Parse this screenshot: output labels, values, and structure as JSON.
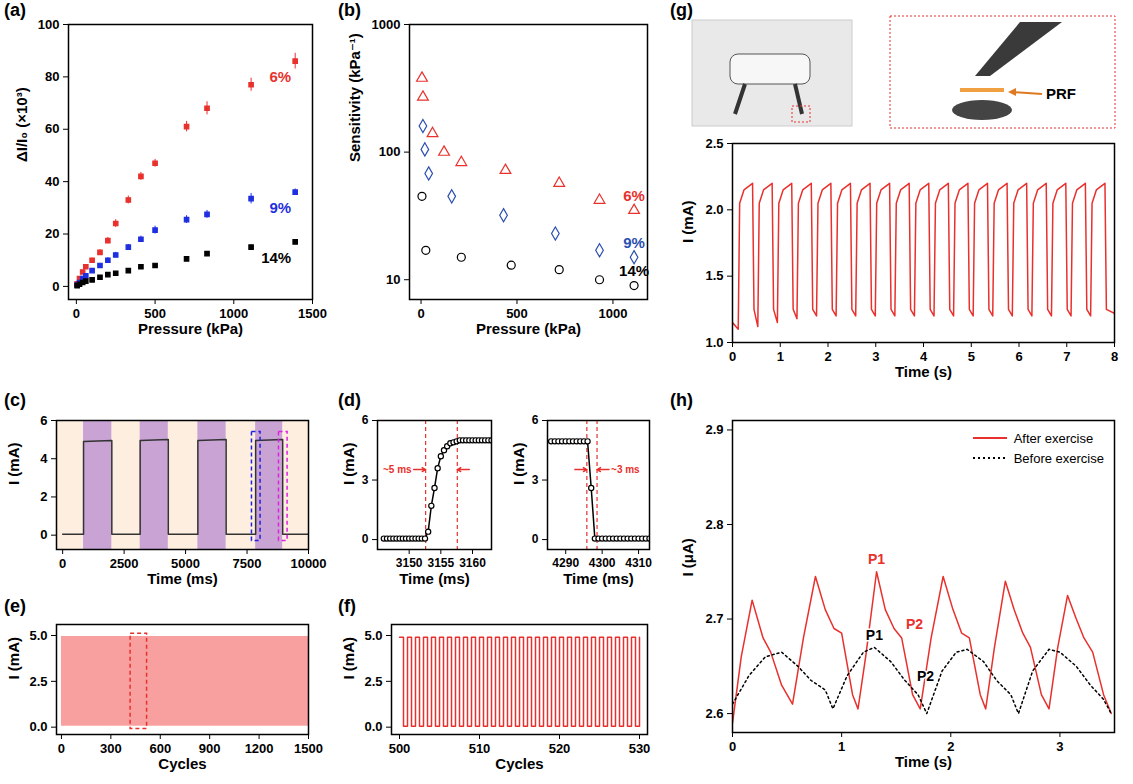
{
  "chart_data": [
    {
      "panel": "(a)",
      "type": "scatter",
      "x_label": "Pressure (kPa)",
      "y_label": "ΔI/I₀ (×10³)",
      "xlim": [
        -50,
        1500
      ],
      "xticks": [
        0,
        500,
        1000,
        1500
      ],
      "ylim": [
        -5,
        100
      ],
      "yticks": [
        0,
        20,
        40,
        60,
        80,
        100
      ],
      "series": [
        {
          "name": "6%",
          "color": "#e8312d",
          "marker": "square",
          "x": [
            5,
            20,
            40,
            60,
            100,
            150,
            200,
            250,
            330,
            410,
            500,
            700,
            830,
            1110,
            1390
          ],
          "values": [
            1,
            3,
            5.5,
            7.5,
            10,
            13,
            17.5,
            24,
            33,
            42,
            47,
            61,
            68,
            77,
            86
          ],
          "errors": [
            0.3,
            0.5,
            0.5,
            0.6,
            0.8,
            1,
            1.2,
            1.5,
            1.5,
            1.5,
            1.5,
            2,
            2.5,
            2.5,
            3
          ]
        },
        {
          "name": "9%",
          "color": "#1f2fe0",
          "marker": "square",
          "x": [
            5,
            20,
            40,
            60,
            100,
            150,
            200,
            250,
            330,
            410,
            500,
            700,
            830,
            1110,
            1390
          ],
          "values": [
            0.5,
            1.5,
            3,
            4,
            6,
            8,
            10,
            12,
            15,
            18,
            21.5,
            25.5,
            27.5,
            33.5,
            36
          ],
          "errors": [
            0.3,
            0.4,
            0.5,
            0.5,
            0.6,
            0.8,
            1,
            1,
            1,
            1.2,
            1.5,
            1.5,
            1.5,
            2,
            1.2
          ]
        },
        {
          "name": "14%",
          "color": "#000000",
          "marker": "square",
          "x": [
            5,
            20,
            40,
            60,
            100,
            150,
            200,
            250,
            330,
            410,
            500,
            700,
            830,
            1110,
            1390
          ],
          "values": [
            0.3,
            0.8,
            1.5,
            2,
            2.5,
            3.5,
            4.5,
            5,
            6,
            7.5,
            8,
            10.5,
            12.5,
            15,
            17
          ],
          "errors": [
            0.2,
            0.2,
            0.3,
            0.3,
            0.3,
            0.4,
            0.4,
            0.5,
            0.5,
            0.5,
            0.5,
            0.7,
            0.7,
            0.7,
            0.8
          ]
        }
      ]
    },
    {
      "panel": "(b)",
      "type": "scatter",
      "log": "y",
      "x_label": "Pressure (kPa)",
      "y_label": "Sensitivity (kPa⁻¹)",
      "xlim": [
        -60,
        1180
      ],
      "xticks": [
        0,
        500,
        1000
      ],
      "ylim": [
        7,
        1000
      ],
      "yticks": [
        10,
        100,
        1000
      ],
      "series": [
        {
          "name": "6%",
          "color": "#e8312d",
          "marker": "triangle-open",
          "x": [
            5,
            10,
            60,
            120,
            210,
            440,
            720,
            930,
            1110
          ],
          "values": [
            380,
            270,
            140,
            100,
            83,
            72,
            57,
            42,
            35
          ]
        },
        {
          "name": "9%",
          "color": "#2a4fb0",
          "marker": "diamond-open",
          "x": [
            10,
            20,
            40,
            160,
            430,
            700,
            930,
            1110
          ],
          "values": [
            160,
            105,
            68,
            45,
            32,
            23,
            17,
            15
          ]
        },
        {
          "name": "14%",
          "color": "#000000",
          "marker": "circle-open",
          "x": [
            5,
            25,
            210,
            470,
            720,
            930,
            1110
          ],
          "values": [
            45,
            17,
            15,
            13,
            12,
            10,
            9
          ]
        }
      ]
    },
    {
      "panel": "(c)",
      "type": "line",
      "x_label": "Time (ms)",
      "y_label": "I (mA)",
      "xlim": [
        -250,
        10000
      ],
      "xticks": [
        0,
        2500,
        5000,
        7500,
        10000
      ],
      "ylim": [
        -0.75,
        6
      ],
      "yticks": [
        0,
        2,
        4,
        6
      ],
      "color": "#333333",
      "x": [
        0,
        850,
        850,
        2000,
        2000,
        3153,
        3153,
        4297,
        4297,
        5500,
        5500,
        6650,
        6650,
        7850,
        7850,
        8950,
        8950,
        10000
      ],
      "values": [
        0.05,
        0.05,
        4.9,
        4.95,
        0.05,
        0.05,
        4.95,
        5.0,
        0.05,
        0.05,
        4.95,
        5.0,
        0.05,
        0.05,
        4.95,
        5.0,
        0.05,
        0.05
      ],
      "highlights": {
        "color": "#c9a3d4",
        "intervals": [
          [
            850,
            2000
          ],
          [
            3153,
            4297
          ],
          [
            5500,
            6650
          ],
          [
            7850,
            8950
          ]
        ]
      },
      "zoom_windows": [
        {
          "x": [
            7700,
            8050
          ],
          "y": [
            -0.3,
            5.4
          ],
          "color": "#2020e0"
        },
        {
          "x": [
            8800,
            9150
          ],
          "y": [
            -0.3,
            5.4
          ],
          "color": "#e020e0"
        }
      ]
    },
    {
      "panel": "(d)",
      "type": "line",
      "x_label": "Time (ms)",
      "y_label": "I (mA)",
      "xlim": [
        3145,
        3163
      ],
      "xticks": [
        3150,
        3155,
        3160
      ],
      "ylim": [
        -0.5,
        6
      ],
      "yticks": [
        0,
        3,
        6
      ],
      "color": "#000000",
      "marker": "circle-open",
      "x": [
        3146,
        3146.5,
        3147,
        3147.5,
        3148,
        3148.5,
        3149,
        3149.5,
        3150,
        3150.5,
        3151,
        3151.5,
        3152,
        3152.5,
        3153,
        3153.5,
        3154,
        3154.5,
        3155,
        3155.5,
        3156,
        3156.5,
        3157,
        3157.5,
        3158,
        3158.5,
        3159,
        3159.5,
        3160,
        3160.5,
        3161,
        3161.5,
        3162,
        3162.5,
        3163
      ],
      "values": [
        0.05,
        0.05,
        0.05,
        0.05,
        0.05,
        0.05,
        0.05,
        0.05,
        0.05,
        0.05,
        0.05,
        0.05,
        0.05,
        0.05,
        0.4,
        1.7,
        2.6,
        3.6,
        4.2,
        4.5,
        4.7,
        4.85,
        4.9,
        4.95,
        5.0,
        5.0,
        5.0,
        5.0,
        5.0,
        5.0,
        5.0,
        5.0,
        5.0,
        5.0,
        5.0
      ],
      "span": {
        "x": [
          3152.6,
          3157.6
        ],
        "label": "~5 ms",
        "color": "#e8312d"
      }
    },
    {
      "type": "line",
      "x_label": "Time (ms)",
      "y_label": "I (mA)",
      "xlim": [
        4285,
        4313
      ],
      "xticks": [
        4290,
        4300,
        4310
      ],
      "ylim": [
        -0.5,
        6
      ],
      "yticks": [
        0,
        3,
        6
      ],
      "color": "#000000",
      "marker": "circle-open",
      "x": [
        4286,
        4287,
        4288,
        4289,
        4290,
        4291,
        4292,
        4293,
        4294,
        4295,
        4296,
        4297,
        4298,
        4299,
        4300,
        4301,
        4302,
        4303,
        4304,
        4305,
        4306,
        4307,
        4308,
        4309,
        4310,
        4311,
        4312,
        4313
      ],
      "values": [
        4.95,
        4.95,
        4.95,
        4.95,
        4.95,
        4.95,
        4.95,
        4.95,
        4.95,
        4.95,
        4.95,
        2.6,
        0.05,
        0.05,
        0.05,
        0.05,
        0.05,
        0.05,
        0.05,
        0.05,
        0.05,
        0.05,
        0.05,
        0.05,
        0.05,
        0.05,
        0.05,
        0.05
      ],
      "span": {
        "x": [
          4295.8,
          4298.6
        ],
        "label": "~3 ms",
        "color": "#e8312d"
      }
    },
    {
      "panel": "(e)",
      "type": "area",
      "x_label": "Cycles",
      "y_label": "I (mA)",
      "xlim": [
        -30,
        1500
      ],
      "xticks": [
        0,
        300,
        600,
        900,
        1200,
        1500
      ],
      "ylim": [
        -0.4,
        5.6
      ],
      "yticks": [
        {
          "value": 0,
          "label": "0.0"
        },
        2.5,
        {
          "value": 5,
          "label": "5.0"
        }
      ],
      "color": "#f8a0a0",
      "x": [
        0,
        1500
      ],
      "upper": [
        4.95,
        4.95
      ],
      "lower": [
        0.05,
        0.05
      ],
      "zoom_windows": [
        {
          "x": [
            420,
            520
          ],
          "y": [
            -0.1,
            5.1
          ],
          "color": "#e8312d"
        }
      ]
    },
    {
      "panel": "(f)",
      "type": "line",
      "x_label": "Cycles",
      "y_label": "I (mA)",
      "xlim": [
        499,
        531
      ],
      "xticks": [
        500,
        510,
        520,
        530
      ],
      "ylim": [
        -0.4,
        5.6
      ],
      "yticks": [
        {
          "value": 0,
          "label": "0.0"
        },
        2.5,
        {
          "value": 5,
          "label": "5.0"
        }
      ],
      "color": "#e8312d",
      "line_style": "step",
      "x": [
        500,
        500.5,
        501,
        501.5,
        502,
        502.5,
        503,
        503.5,
        504,
        504.5,
        505,
        505.5,
        506,
        506.5,
        507,
        507.5,
        508,
        508.5,
        509,
        509.5,
        510,
        510.5,
        511,
        511.5,
        512,
        512.5,
        513,
        513.5,
        514,
        514.5,
        515,
        515.5,
        516,
        516.5,
        517,
        517.5,
        518,
        518.5,
        519,
        519.5,
        520,
        520.5,
        521,
        521.5,
        522,
        522.5,
        523,
        523.5,
        524,
        524.5,
        525,
        525.5,
        526,
        526.5,
        527,
        527.5,
        528,
        528.5,
        529,
        529.5,
        530
      ],
      "values": [
        4.9,
        0.05,
        4.9,
        0.05,
        4.9,
        0.05,
        4.9,
        0.05,
        4.9,
        0.05,
        4.9,
        0.05,
        4.9,
        0.05,
        4.9,
        0.05,
        4.9,
        0.05,
        4.9,
        0.05,
        4.9,
        0.05,
        4.9,
        0.05,
        4.9,
        0.05,
        4.9,
        0.05,
        4.9,
        0.05,
        4.9,
        0.05,
        4.9,
        0.05,
        4.9,
        0.05,
        4.9,
        0.05,
        4.9,
        0.05,
        4.9,
        0.05,
        4.9,
        0.05,
        4.9,
        0.05,
        4.9,
        0.05,
        4.9,
        0.05,
        4.9,
        0.05,
        4.9,
        0.05,
        4.9,
        0.05,
        4.9,
        0.05,
        4.9,
        0.05,
        4.9
      ]
    },
    {
      "panel": "(g)",
      "type": "line",
      "x_label": "Time (s)",
      "y_label": "I (mA)",
      "xlim": [
        0,
        8
      ],
      "xticks": [
        0,
        1,
        2,
        3,
        4,
        5,
        6,
        7,
        8
      ],
      "ylim": [
        1.0,
        2.5
      ],
      "yticks": [
        {
          "value": 1,
          "label": "1.0"
        },
        1.5,
        {
          "value": 2,
          "label": "2.0"
        },
        2.5
      ],
      "color": "#e8312d",
      "x": [
        0,
        0.12,
        0.15,
        0.24,
        0.42,
        0.45,
        0.53,
        0.56,
        0.65,
        0.83,
        0.86,
        0.94,
        0.97,
        1.06,
        1.24,
        1.27,
        1.35,
        1.38,
        1.47,
        1.65,
        1.68,
        1.76,
        1.79,
        1.88,
        2.06,
        2.09,
        2.17,
        2.2,
        2.29,
        2.47,
        2.5,
        2.58,
        2.61,
        2.7,
        2.88,
        2.91,
        2.99,
        3.02,
        3.11,
        3.29,
        3.32,
        3.4,
        3.43,
        3.52,
        3.7,
        3.73,
        3.81,
        3.84,
        3.93,
        4.11,
        4.14,
        4.22,
        4.25,
        4.34,
        4.52,
        4.55,
        4.63,
        4.66,
        4.75,
        4.93,
        4.96,
        5.04,
        5.07,
        5.16,
        5.34,
        5.37,
        5.45,
        5.48,
        5.57,
        5.75,
        5.78,
        5.86,
        5.89,
        5.98,
        6.16,
        6.19,
        6.27,
        6.3,
        6.39,
        6.57,
        6.6,
        6.68,
        6.71,
        6.8,
        6.98,
        7.01,
        7.09,
        7.12,
        7.21,
        7.39,
        7.42,
        7.5,
        7.53,
        7.62,
        7.8,
        7.83,
        8
      ],
      "values": [
        1.15,
        1.1,
        2.05,
        2.15,
        2.2,
        1.25,
        1.12,
        2.05,
        2.15,
        2.2,
        1.25,
        1.15,
        2.05,
        2.15,
        2.2,
        1.25,
        1.18,
        2.05,
        2.15,
        2.2,
        1.25,
        1.2,
        2.05,
        2.15,
        2.2,
        1.25,
        1.2,
        2.05,
        2.15,
        2.2,
        1.25,
        1.2,
        2.05,
        2.15,
        2.2,
        1.25,
        1.2,
        2.05,
        2.15,
        2.2,
        1.25,
        1.2,
        2.05,
        2.15,
        2.2,
        1.25,
        1.2,
        2.05,
        2.15,
        2.2,
        1.25,
        1.2,
        2.05,
        2.15,
        2.2,
        1.25,
        1.2,
        2.05,
        2.15,
        2.2,
        1.25,
        1.2,
        2.05,
        2.15,
        2.2,
        1.25,
        1.2,
        2.05,
        2.15,
        2.2,
        1.25,
        1.2,
        2.05,
        2.15,
        2.2,
        1.25,
        1.2,
        2.05,
        2.15,
        2.2,
        1.25,
        1.2,
        2.05,
        2.15,
        2.2,
        1.25,
        1.2,
        2.05,
        2.15,
        2.2,
        1.25,
        1.2,
        2.05,
        2.15,
        2.2,
        1.25,
        1.22
      ],
      "annotations": [
        {
          "text": "PRF"
        }
      ]
    },
    {
      "panel": "(h)",
      "type": "line",
      "x_label": "Time (s)",
      "y_label": "I (μA)",
      "xlim": [
        0,
        3.5
      ],
      "xticks": [
        0,
        1,
        2,
        3
      ],
      "ylim": [
        2.58,
        2.91
      ],
      "yticks": [
        2.6,
        2.7,
        2.8,
        2.9
      ],
      "legend": "top-right",
      "series": [
        {
          "name": "After exercise",
          "color": "#e8312d",
          "line_style": "solid",
          "x": [
            0,
            0.08,
            0.18,
            0.28,
            0.35,
            0.45,
            0.55,
            0.65,
            0.76,
            0.85,
            0.93,
            1.0,
            1.1,
            1.15,
            1.22,
            1.32,
            1.4,
            1.48,
            1.55,
            1.65,
            1.72,
            1.82,
            1.93,
            2.02,
            2.1,
            2.17,
            2.27,
            2.32,
            2.4,
            2.5,
            2.58,
            2.66,
            2.73,
            2.83,
            2.9,
            2.98,
            3.07,
            3.15,
            3.22,
            3.3,
            3.4,
            3.47
          ],
          "values": [
            2.59,
            2.66,
            2.72,
            2.68,
            2.665,
            2.63,
            2.61,
            2.68,
            2.745,
            2.71,
            2.69,
            2.685,
            2.62,
            2.605,
            2.66,
            2.75,
            2.71,
            2.69,
            2.68,
            2.62,
            2.605,
            2.68,
            2.745,
            2.71,
            2.685,
            2.68,
            2.62,
            2.605,
            2.67,
            2.74,
            2.71,
            2.685,
            2.67,
            2.62,
            2.605,
            2.67,
            2.725,
            2.7,
            2.68,
            2.665,
            2.62,
            2.6
          ],
          "annotations": [
            {
              "text": "P1",
              "x": 1.32,
              "y": 2.75
            },
            {
              "text": "P2",
              "x": 1.48,
              "y": 2.69
            }
          ]
        },
        {
          "name": "Before exercise",
          "color": "#000000",
          "line_style": "dotted",
          "x": [
            0,
            0.15,
            0.3,
            0.45,
            0.6,
            0.72,
            0.85,
            0.92,
            1.05,
            1.2,
            1.3,
            1.45,
            1.58,
            1.7,
            1.78,
            1.92,
            2.05,
            2.15,
            2.3,
            2.42,
            2.55,
            2.62,
            2.75,
            2.9,
            3.0,
            3.15,
            3.28,
            3.4,
            3.47
          ],
          "values": [
            2.61,
            2.64,
            2.66,
            2.665,
            2.65,
            2.635,
            2.625,
            2.605,
            2.64,
            2.665,
            2.67,
            2.655,
            2.635,
            2.62,
            2.6,
            2.645,
            2.665,
            2.668,
            2.655,
            2.635,
            2.62,
            2.6,
            2.645,
            2.668,
            2.665,
            2.65,
            2.63,
            2.615,
            2.6
          ],
          "annotations": [
            {
              "text": "P1",
              "x": 1.3,
              "y": 2.67
            },
            {
              "text": "P2",
              "x": 1.58,
              "y": 2.635
            }
          ]
        }
      ]
    }
  ]
}
